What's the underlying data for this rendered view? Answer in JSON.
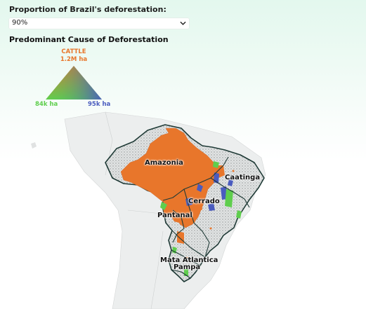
{
  "control": {
    "label": "Proportion of Brazil's deforestation:",
    "selected": "90%"
  },
  "legend": {
    "title": "Predominant Cause of Deforestation",
    "top_name": "CATTLE",
    "top_value": "1.2M ha",
    "left_value": "84k ha",
    "right_value": "95k ha",
    "colors": {
      "top": "#e8762b",
      "left": "#5fce4d",
      "right": "#4a5bbf"
    }
  },
  "map": {
    "colors": {
      "cattle": "#e8762b",
      "green": "#5fce4d",
      "blue": "#4a5bbf",
      "land": "#d7d9d9",
      "ocean": "#ffffff",
      "border": "#1f3a36"
    },
    "regions": [
      {
        "name": "Amazonia"
      },
      {
        "name": "Caatinga"
      },
      {
        "name": "Cerrado"
      },
      {
        "name": "Pantanal"
      },
      {
        "name": "Mata Atlantica"
      },
      {
        "name": "Pampa"
      }
    ]
  }
}
